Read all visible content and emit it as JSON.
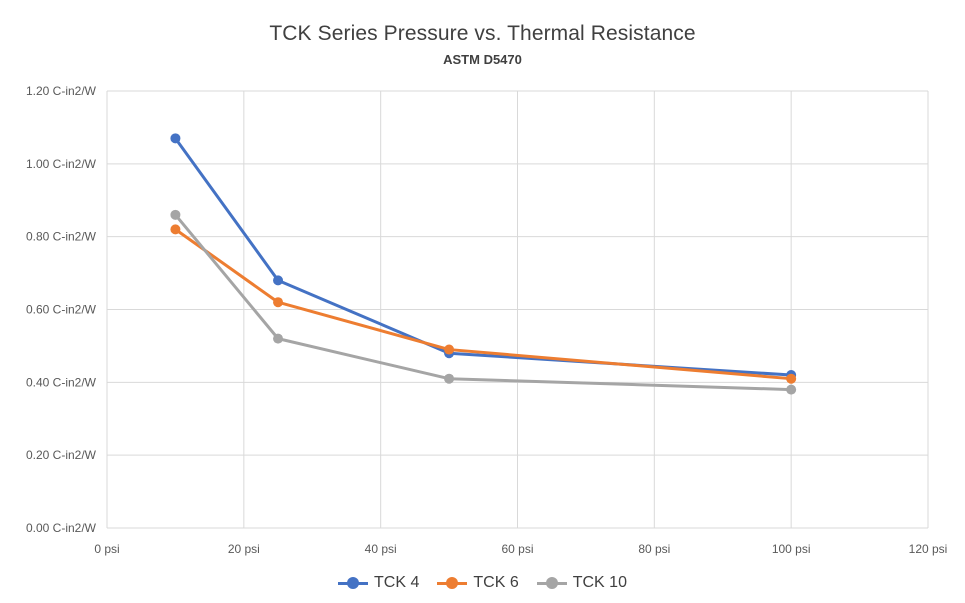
{
  "chart_data": {
    "type": "line",
    "title": "TCK Series Pressure vs. Thermal Resistance",
    "subtitle": "ASTM D5470",
    "x": [
      10,
      25,
      50,
      100
    ],
    "xlim": [
      0,
      120
    ],
    "ylim": [
      0,
      1.2
    ],
    "x_ticks": [
      "0 psi",
      "20 psi",
      "40 psi",
      "60 psi",
      "80 psi",
      "100 psi",
      "120 psi"
    ],
    "y_ticks": [
      "0.00 C-in2/W",
      "0.20 C-in2/W",
      "0.40 C-in2/W",
      "0.60 C-in2/W",
      "0.80 C-in2/W",
      "1.00 C-in2/W",
      "1.20 C-in2/W"
    ],
    "grid": true,
    "legend_position": "bottom",
    "series": [
      {
        "name": "TCK 4",
        "color": "#4472c4",
        "values": [
          1.07,
          0.68,
          0.48,
          0.42
        ]
      },
      {
        "name": "TCK 6",
        "color": "#ed7d31",
        "values": [
          0.82,
          0.62,
          0.49,
          0.41
        ]
      },
      {
        "name": "TCK 10",
        "color": "#a5a5a5",
        "values": [
          0.86,
          0.52,
          0.41,
          0.38
        ]
      }
    ]
  }
}
